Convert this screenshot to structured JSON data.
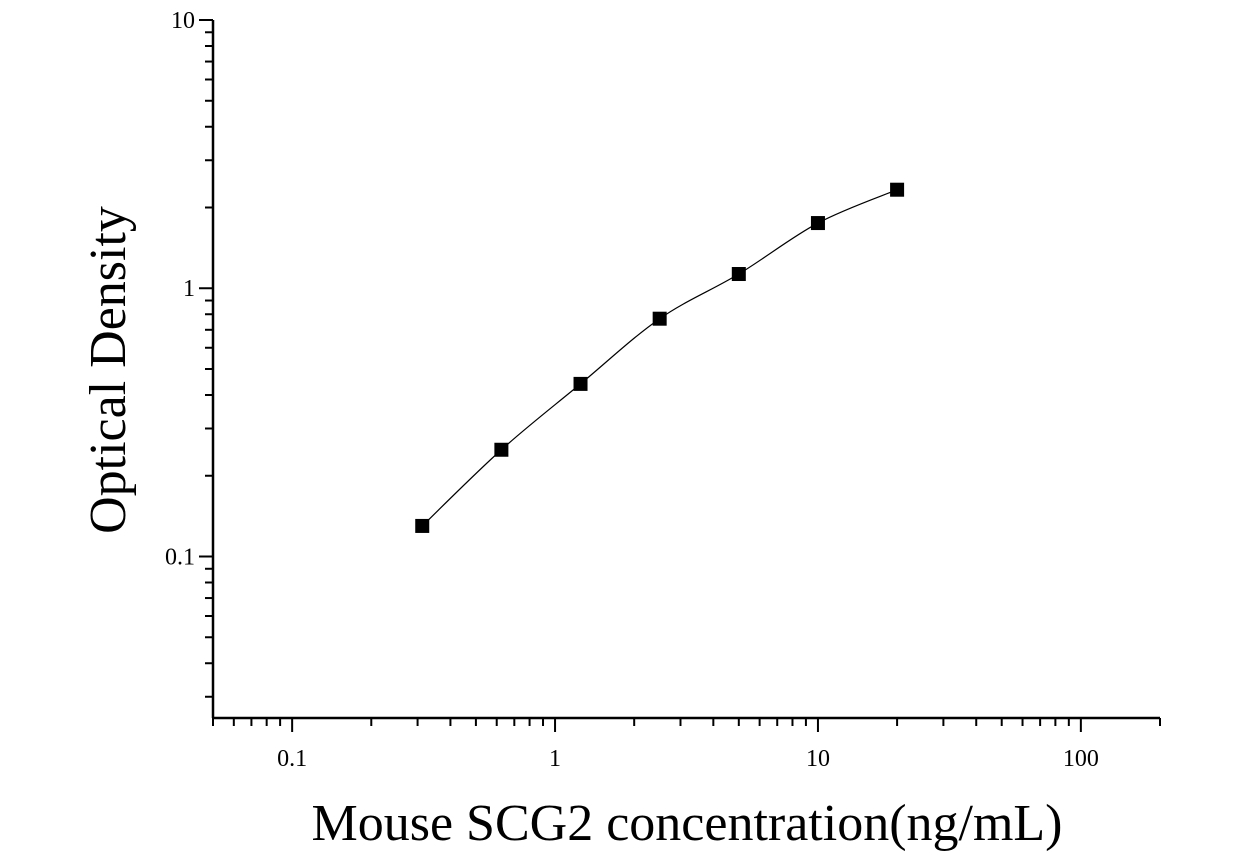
{
  "chart_data": {
    "type": "scatter",
    "title": "",
    "xlabel": "Mouse SCG2 concentration(ng/mL)",
    "ylabel": "Optical Density",
    "x_scale": "log",
    "y_scale": "log",
    "xlim": [
      0.05,
      200
    ],
    "ylim": [
      0.025,
      10
    ],
    "x_ticks": [
      {
        "value": 0.1,
        "label": "0.1"
      },
      {
        "value": 1,
        "label": "1"
      },
      {
        "value": 10,
        "label": "10"
      },
      {
        "value": 100,
        "label": "100"
      }
    ],
    "y_ticks": [
      {
        "value": 0.1,
        "label": "0.1"
      },
      {
        "value": 1,
        "label": "1"
      },
      {
        "value": 10,
        "label": "10"
      }
    ],
    "grid": false,
    "legend": "none",
    "marker": "square",
    "marker_color": "#000000",
    "line_color": "#000000",
    "points": [
      {
        "x": 0.3125,
        "y": 0.13
      },
      {
        "x": 0.625,
        "y": 0.25
      },
      {
        "x": 1.25,
        "y": 0.44
      },
      {
        "x": 2.5,
        "y": 0.77
      },
      {
        "x": 5,
        "y": 1.13
      },
      {
        "x": 10,
        "y": 1.75
      },
      {
        "x": 20,
        "y": 2.33
      }
    ]
  }
}
